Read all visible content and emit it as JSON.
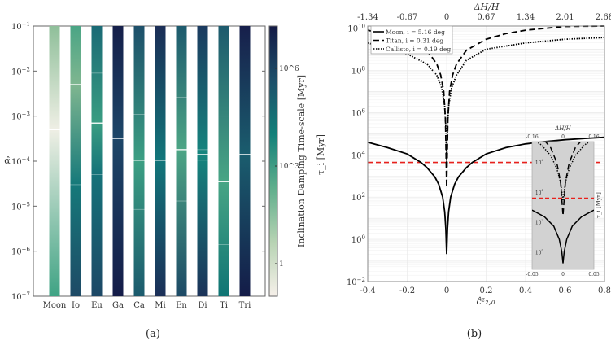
{
  "chart_data": [
    {
      "type": "heatmap",
      "panel_caption": "(a)",
      "ylabel": "α̂",
      "yscale": "log",
      "ylim": [
        1e-07,
        0.1
      ],
      "yticks_exp": [
        -1,
        -2,
        -3,
        -4,
        -5,
        -6,
        -7
      ],
      "categories": [
        "Moon",
        "Io",
        "Eu",
        "Ga",
        "Ca",
        "Mi",
        "En",
        "Di",
        "Ti",
        "Tri"
      ],
      "colorbar": {
        "label": "Inclination Damping Time-scale [Myr]",
        "scale": "log",
        "ticks": [
          {
            "label": "1",
            "value": 1
          },
          {
            "label": "10^3",
            "value": 1000
          },
          {
            "label": "10^6",
            "value": 1000000
          }
        ],
        "range": [
          0.1,
          20000000.0
        ],
        "colors": [
          "#f6f0ea",
          "#b7d3b3",
          "#5fae8c",
          "#128079",
          "#1d4f6a",
          "#141a45"
        ]
      },
      "bars": [
        {
          "name": "Moon",
          "gradient": [
            [
              0.1,
              "#8fbf9a"
            ],
            [
              0.0005,
              "#efefe5"
            ],
            [
              1e-07,
              "#3fa384"
            ]
          ],
          "lines": [
            {
              "alpha": 0.0005,
              "strong": true
            }
          ]
        },
        {
          "name": "Io",
          "gradient": [
            [
              0.1,
              "#4aa585"
            ],
            [
              0.005,
              "#7fb690"
            ],
            [
              3e-05,
              "#16797a"
            ],
            [
              1e-07,
              "#1e4a66"
            ]
          ],
          "lines": [
            {
              "alpha": 0.005,
              "strong": true
            },
            {
              "alpha": 3e-05,
              "strong": false
            }
          ]
        },
        {
          "name": "Eu",
          "gradient": [
            [
              0.1,
              "#1a6a75"
            ],
            [
              0.0007,
              "#3a9d82"
            ],
            [
              5e-05,
              "#157279"
            ],
            [
              1e-07,
              "#1d4866"
            ]
          ],
          "lines": [
            {
              "alpha": 0.009,
              "strong": false
            },
            {
              "alpha": 0.0007,
              "strong": true
            },
            {
              "alpha": 5e-05,
              "strong": false
            }
          ]
        },
        {
          "name": "Ga",
          "gradient": [
            [
              0.1,
              "#151f4a"
            ],
            [
              0.00032,
              "#1d4668"
            ],
            [
              1e-07,
              "#141c48"
            ]
          ],
          "lines": [
            {
              "alpha": 0.00032,
              "strong": true
            }
          ]
        },
        {
          "name": "Ca",
          "gradient": [
            [
              0.1,
              "#1d4f6a"
            ],
            [
              0.000105,
              "#3c9f83"
            ],
            [
              1e-07,
              "#1b5a6d"
            ]
          ],
          "lines": [
            {
              "alpha": 0.0011,
              "strong": false
            },
            {
              "alpha": 0.000105,
              "strong": true
            },
            {
              "alpha": 8.5e-06,
              "strong": false
            }
          ]
        },
        {
          "name": "Mi",
          "gradient": [
            [
              0.1,
              "#1b2d56"
            ],
            [
              0.000105,
              "#12767a"
            ],
            [
              1e-07,
              "#1b2f58"
            ]
          ],
          "lines": [
            {
              "alpha": 0.000105,
              "strong": true
            }
          ]
        },
        {
          "name": "En",
          "gradient": [
            [
              0.1,
              "#1d5a6d"
            ],
            [
              0.00018,
              "#4da585"
            ],
            [
              1e-07,
              "#1d4a66"
            ]
          ],
          "lines": [
            {
              "alpha": 0.0026,
              "strong": false
            },
            {
              "alpha": 0.00018,
              "strong": true
            },
            {
              "alpha": 1.3e-05,
              "strong": false
            }
          ]
        },
        {
          "name": "Di",
          "gradient": [
            [
              0.1,
              "#1b3a5f"
            ],
            [
              0.00014,
              "#16857e"
            ],
            [
              1e-07,
              "#1b3359"
            ]
          ],
          "lines": [
            {
              "alpha": 0.00018,
              "strong": false
            },
            {
              "alpha": 0.00014,
              "strong": true
            },
            {
              "alpha": 0.000105,
              "strong": false
            }
          ]
        },
        {
          "name": "Ti",
          "gradient": [
            [
              0.1,
              "#1d5a6d"
            ],
            [
              3.5e-05,
              "#48a585"
            ],
            [
              1e-07,
              "#0f7474"
            ]
          ],
          "lines": [
            {
              "alpha": 0.001,
              "strong": false
            },
            {
              "alpha": 3.5e-05,
              "strong": true
            },
            {
              "alpha": 1.4e-06,
              "strong": false
            }
          ]
        },
        {
          "name": "Tri",
          "gradient": [
            [
              0.1,
              "#171f4b"
            ],
            [
              0.00014,
              "#1a5d6e"
            ],
            [
              1e-07,
              "#141c48"
            ]
          ],
          "lines": [
            {
              "alpha": 0.00014,
              "strong": true
            }
          ]
        }
      ]
    },
    {
      "type": "line",
      "panel_caption": "(b)",
      "xlabel": "ĉ²₂,₀",
      "ylabel": "τ_i [Myr]",
      "top_xlabel": "ΔH/H",
      "xlim": [
        -0.4,
        0.8
      ],
      "ylim_exp": [
        -2,
        10.1
      ],
      "yscale": "log",
      "grid": true,
      "xticks": [
        "-0.4",
        "-0.2",
        "0",
        "0.2",
        "0.4",
        "0.6",
        "0.8"
      ],
      "top_xticks": [
        "-1.34",
        "-0.67",
        "0",
        "0.67",
        "1.34",
        "2.01",
        "2.68"
      ],
      "yticks_exp": [
        -2,
        0,
        2,
        4,
        6,
        8,
        10
      ],
      "legend_position": "top-left",
      "threshold": {
        "value": 4400,
        "color": "#e8201c",
        "style": "dashed"
      },
      "series": [
        {
          "name": "Moon, i = 5.16 deg",
          "style": "solid",
          "x": [
            -0.4,
            -0.3,
            -0.2,
            -0.13,
            -0.1,
            -0.06,
            -0.04,
            -0.02,
            -0.01,
            -0.004,
            0,
            0.004,
            0.01,
            0.02,
            0.04,
            0.06,
            0.1,
            0.13,
            0.2,
            0.3,
            0.4,
            0.5,
            0.6,
            0.7,
            0.8
          ],
          "y": [
            40000,
            22000,
            11000,
            4400,
            2500,
            900,
            400,
            100,
            20,
            3,
            0.2,
            3,
            20,
            100,
            400,
            900,
            2500,
            4400,
            11000,
            22000,
            33000,
            43000,
            52000,
            60000,
            68000
          ]
        },
        {
          "name": "Titan, i = 0.31 deg",
          "style": "dashed",
          "x": [
            -0.4,
            -0.3,
            -0.2,
            -0.12,
            -0.08,
            -0.05,
            -0.03,
            -0.015,
            -0.006,
            0,
            0.006,
            0.015,
            0.03,
            0.05,
            0.1,
            0.2,
            0.3,
            0.4,
            0.6,
            0.8
          ],
          "y": [
            8000000000.0,
            5000000000.0,
            3000000000.0,
            1300000000.0,
            500000000.0,
            200000000.0,
            60000000.0,
            10000000.0,
            500000.0,
            300,
            500000.0,
            10000000.0,
            60000000.0,
            200000000.0,
            900000000.0,
            3000000000.0,
            5500000000.0,
            8000000000.0,
            12000000000.0,
            15000000000.0
          ]
        },
        {
          "name": "Callisto, i = 0.19 deg",
          "style": "dotted",
          "x": [
            -0.4,
            -0.3,
            -0.2,
            -0.1,
            -0.05,
            -0.025,
            -0.01,
            -0.004,
            0,
            0.004,
            0.01,
            0.025,
            0.05,
            0.1,
            0.2,
            0.4,
            0.6,
            0.8
          ],
          "y": [
            2000000000.0,
            1100000000.0,
            600000000.0,
            200000000.0,
            60000000.0,
            15000000.0,
            2000000.0,
            200000.0,
            4000,
            200000.0,
            2000000.0,
            15000000.0,
            60000000.0,
            300000000.0,
            1000000000.0,
            2000000000.0,
            3000000000.0,
            3600000000.0
          ]
        }
      ],
      "inset": {
        "xlim": [
          -0.05,
          0.05
        ],
        "ylim_exp": [
          -1.1,
          7.4
        ],
        "xticks": [
          "-0.05",
          "0",
          "0.05"
        ],
        "top_xticks": [
          "-0.16",
          "0",
          "0.16"
        ],
        "top_xlabel": "ΔH/H",
        "ylabel": "τ_i [Myr]",
        "yticks_exp": [
          0,
          2,
          4,
          6
        ],
        "background": "#d2d2d2",
        "threshold": 4400,
        "series": [
          {
            "style": "solid",
            "x": [
              -0.05,
              -0.03,
              -0.015,
              -0.006,
              -0.002,
              0,
              0.002,
              0.006,
              0.015,
              0.03,
              0.05
            ],
            "y": [
              700,
              250,
              60,
              8,
              1.2,
              0.2,
              1.2,
              8,
              60,
              250,
              700
            ]
          },
          {
            "style": "dashed",
            "x": [
              -0.03,
              -0.02,
              -0.01,
              -0.004,
              0,
              0.004,
              0.01,
              0.02,
              0.03
            ],
            "y": [
              30000000.0,
              10000000.0,
              1000000.0,
              50000.0,
              300,
              50000.0,
              1000000.0,
              10000000.0,
              30000000.0
            ]
          },
          {
            "style": "dotted",
            "x": [
              -0.05,
              -0.035,
              -0.02,
              -0.01,
              -0.004,
              0,
              0.004,
              0.01,
              0.02,
              0.035,
              0.05
            ],
            "y": [
              40000000.0,
              15000000.0,
              3000000.0,
              400000.0,
              50000.0,
              3000,
              50000.0,
              400000.0,
              3000000.0,
              15000000.0,
              40000000.0
            ]
          }
        ]
      }
    }
  ]
}
